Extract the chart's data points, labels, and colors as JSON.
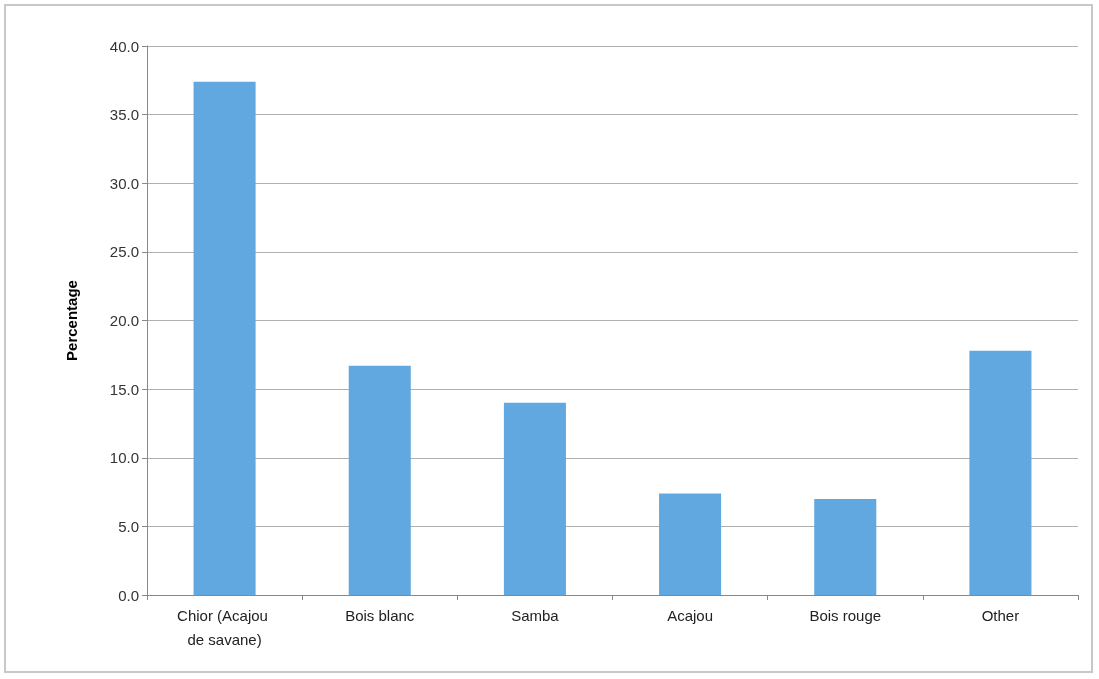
{
  "chart_data": {
    "type": "bar",
    "ylabel": "Percentage",
    "categories": [
      "Chior (Acajou de savane)",
      "Bois blanc",
      "Samba",
      "Acajou",
      "Bois rouge",
      "Other"
    ],
    "values": [
      37.4,
      16.7,
      14.0,
      7.4,
      7.0,
      17.8
    ],
    "color": "#62a8e0",
    "ylim": [
      0,
      40
    ],
    "yticks": [
      {
        "value": 0,
        "label": "0.0"
      },
      {
        "value": 5,
        "label": "5.0"
      },
      {
        "value": 10,
        "label": "10.0"
      },
      {
        "value": 15,
        "label": "15.0"
      },
      {
        "value": 20,
        "label": "20.0"
      },
      {
        "value": 25,
        "label": "25.0"
      },
      {
        "value": 30,
        "label": "30.0"
      },
      {
        "value": 35,
        "label": "35.0"
      },
      {
        "value": 40,
        "label": "40.0"
      }
    ],
    "grid": "y"
  }
}
